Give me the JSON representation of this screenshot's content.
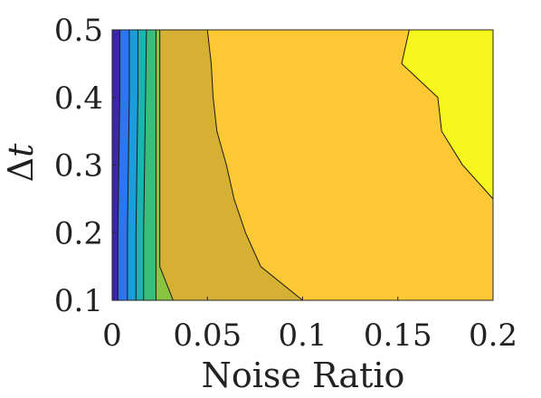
{
  "chart_data": {
    "type": "contour",
    "xlabel": "Noise Ratio",
    "ylabel": "Δt",
    "ylabel_parts": {
      "symbol": "Δ",
      "variable": "t"
    },
    "xlim": [
      0,
      0.2
    ],
    "ylim": [
      0.1,
      0.5
    ],
    "x_ticks": [
      "0",
      "0.05",
      "0.1",
      "0.15",
      "0.2"
    ],
    "y_ticks": [
      "0.1",
      "0.2",
      "0.3",
      "0.4",
      "0.5"
    ],
    "grid": false,
    "colormap": "parula",
    "levels": [
      {
        "color": "#3e26a8",
        "x_boundary": [
          [
            0.5,
            0.004
          ],
          [
            0.4,
            0.004
          ],
          [
            0.3,
            0.0035
          ],
          [
            0.2,
            0.003
          ],
          [
            0.1,
            0.003
          ]
        ]
      },
      {
        "color": "#2c76f4",
        "x_boundary": [
          [
            0.5,
            0.009
          ],
          [
            0.4,
            0.009
          ],
          [
            0.3,
            0.0085
          ],
          [
            0.2,
            0.008
          ],
          [
            0.1,
            0.008
          ]
        ]
      },
      {
        "color": "#1c9cdb",
        "x_boundary": [
          [
            0.5,
            0.0135
          ],
          [
            0.4,
            0.0135
          ],
          [
            0.3,
            0.013
          ],
          [
            0.2,
            0.0125
          ],
          [
            0.1,
            0.0125
          ]
        ]
      },
      {
        "color": "#1bb5b0",
        "x_boundary": [
          [
            0.5,
            0.018
          ],
          [
            0.4,
            0.0175
          ],
          [
            0.3,
            0.017
          ],
          [
            0.2,
            0.0165
          ],
          [
            0.1,
            0.0165
          ]
        ]
      },
      {
        "color": "#39be78",
        "x_boundary": [
          [
            0.5,
            0.023
          ],
          [
            0.4,
            0.023
          ],
          [
            0.3,
            0.023
          ],
          [
            0.2,
            0.023
          ],
          [
            0.1,
            0.023
          ]
        ]
      },
      {
        "color": "#8ac542",
        "x_boundary": [
          [
            0.5,
            0.025
          ],
          [
            0.4,
            0.025
          ],
          [
            0.3,
            0.025
          ],
          [
            0.2,
            0.025
          ],
          [
            0.15,
            0.025
          ],
          [
            0.1,
            0.032
          ]
        ]
      },
      {
        "color": "#d6b033",
        "x_boundary": [
          [
            0.5,
            0.05
          ],
          [
            0.45,
            0.052
          ],
          [
            0.4,
            0.053
          ],
          [
            0.35,
            0.055
          ],
          [
            0.3,
            0.06
          ],
          [
            0.25,
            0.064
          ],
          [
            0.2,
            0.07
          ],
          [
            0.15,
            0.078
          ],
          [
            0.1,
            0.1
          ]
        ]
      },
      {
        "color": "#fcc935",
        "x_boundary": [
          [
            0.5,
            0.156
          ],
          [
            0.45,
            0.152
          ],
          [
            0.4,
            0.171
          ],
          [
            0.35,
            0.173
          ],
          [
            0.3,
            0.184
          ],
          [
            0.25,
            0.2
          ]
        ]
      },
      {
        "color": "#f6f71c",
        "x_boundary": []
      }
    ]
  }
}
